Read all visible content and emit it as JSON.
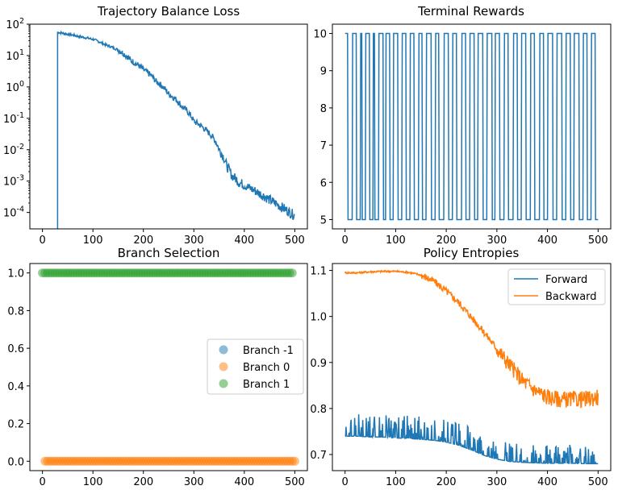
{
  "chart_data": [
    {
      "type": "line",
      "title": "Trajectory Balance Loss",
      "xlabel": "",
      "ylabel": "",
      "yscale": "log",
      "xlim": [
        -25,
        525
      ],
      "ylim": [
        3e-05,
        100
      ],
      "xticks": [
        0,
        100,
        200,
        300,
        400,
        500
      ],
      "xtick_labels": [
        "0",
        "100",
        "200",
        "300",
        "400",
        "500"
      ],
      "ytick_labels": [
        {
          "mantissa": "10",
          "exp": "-4",
          "value": 0.0001
        },
        {
          "mantissa": "10",
          "exp": "-3",
          "value": 0.001
        },
        {
          "mantissa": "10",
          "exp": "-2",
          "value": 0.01
        },
        {
          "mantissa": "10",
          "exp": "-1",
          "value": 0.1
        },
        {
          "mantissa": "10",
          "exp": "0",
          "value": 1
        },
        {
          "mantissa": "10",
          "exp": "1",
          "value": 10
        },
        {
          "mantissa": "10",
          "exp": "2",
          "value": 100
        }
      ],
      "color": "#1f77b4",
      "series": [
        {
          "x": [
            30,
            30,
            31,
            50,
            75,
            100,
            125,
            150,
            175,
            200,
            225,
            250,
            275,
            300,
            325,
            350,
            365,
            375,
            390,
            410,
            430,
            450,
            470,
            490,
            500
          ],
          "y": [
            3e-05,
            55,
            55,
            48,
            40,
            33,
            22,
            15,
            7,
            3.5,
            1.5,
            0.6,
            0.25,
            0.08,
            0.04,
            0.01,
            0.003,
            0.0015,
            0.0009,
            0.0006,
            0.0004,
            0.00025,
            0.00016,
            0.0001,
            8e-05
          ]
        }
      ]
    },
    {
      "type": "line",
      "title": "Terminal Rewards",
      "xlabel": "",
      "ylabel": "",
      "xlim": [
        -25,
        525
      ],
      "ylim": [
        4.75,
        10.25
      ],
      "xticks": [
        0,
        100,
        200,
        300,
        400,
        500
      ],
      "xtick_labels": [
        "0",
        "100",
        "200",
        "300",
        "400",
        "500"
      ],
      "yticks": [
        5,
        6,
        7,
        8,
        9,
        10
      ],
      "ytick_labels": [
        "5",
        "6",
        "7",
        "8",
        "9",
        "10"
      ],
      "color": "#1f77b4",
      "value_set": [
        5,
        10
      ],
      "series": [
        {
          "x": [
            0,
            5,
            6,
            14,
            15,
            22,
            23,
            30,
            31,
            33,
            34,
            40,
            41,
            48,
            49,
            55,
            56,
            58,
            59,
            66,
            67,
            75,
            76,
            80,
            81,
            88,
            89,
            95,
            96,
            104,
            105,
            112,
            113,
            120,
            121,
            128,
            129,
            136,
            137,
            145,
            146,
            152,
            153,
            160,
            161,
            170,
            171,
            178,
            179,
            185,
            186,
            195,
            196,
            204,
            205,
            212,
            213,
            220,
            221,
            230,
            231,
            238,
            239,
            246,
            247,
            255,
            256,
            262,
            263,
            272,
            273,
            280,
            281,
            290,
            291,
            296,
            297,
            305,
            306,
            314,
            315,
            322,
            323,
            332,
            333,
            340,
            341,
            348,
            349,
            357,
            358,
            366,
            367,
            374,
            375,
            384,
            385,
            392,
            393,
            400,
            401,
            410,
            411,
            418,
            419,
            428,
            429,
            436,
            437,
            445,
            446,
            452,
            453,
            462,
            463,
            470,
            471,
            478,
            479,
            486,
            487,
            494,
            495,
            500
          ],
          "y": [
            10,
            10,
            5,
            5,
            10,
            10,
            5,
            5,
            10,
            10,
            5,
            5,
            10,
            10,
            5,
            5,
            10,
            10,
            5,
            5,
            10,
            10,
            5,
            5,
            10,
            10,
            5,
            5,
            10,
            10,
            5,
            5,
            10,
            10,
            5,
            5,
            10,
            10,
            5,
            5,
            10,
            10,
            5,
            5,
            10,
            10,
            5,
            5,
            10,
            10,
            5,
            5,
            10,
            10,
            5,
            5,
            10,
            10,
            5,
            5,
            10,
            10,
            5,
            5,
            10,
            10,
            5,
            5,
            10,
            10,
            5,
            5,
            10,
            10,
            5,
            5,
            10,
            10,
            5,
            5,
            10,
            10,
            5,
            5,
            10,
            10,
            5,
            5,
            10,
            10,
            5,
            5,
            10,
            10,
            5,
            5,
            10,
            10,
            5,
            5,
            10,
            10,
            5,
            5,
            10,
            10,
            5,
            5,
            10,
            10,
            5,
            5,
            10,
            10,
            5,
            5,
            10,
            10,
            5,
            5,
            10,
            10,
            5,
            5
          ]
        }
      ]
    },
    {
      "type": "scatter",
      "title": "Branch Selection",
      "xlabel": "",
      "ylabel": "",
      "xlim": [
        -25,
        525
      ],
      "ylim": [
        -0.05,
        1.05
      ],
      "xticks": [
        0,
        100,
        200,
        300,
        400,
        500
      ],
      "xtick_labels": [
        "0",
        "100",
        "200",
        "300",
        "400",
        "500"
      ],
      "yticks": [
        0.0,
        0.2,
        0.4,
        0.6,
        0.8,
        1.0
      ],
      "ytick_labels": [
        "0.0",
        "0.2",
        "0.4",
        "0.6",
        "0.8",
        "1.0"
      ],
      "legend_position": "right",
      "series": [
        {
          "name": "Branch -1",
          "color": "#1f77b4",
          "x": [],
          "y_value": -1
        },
        {
          "name": "Branch 0",
          "color": "#ff7f0e",
          "x_range": [
            5,
            500
          ],
          "x_step": 5,
          "y_value": 0.0
        },
        {
          "name": "Branch 1",
          "color": "#2ca02c",
          "x_range": [
            0,
            495
          ],
          "x_step": 5,
          "y_value": 1.0
        }
      ]
    },
    {
      "type": "line",
      "title": "Policy Entropies",
      "xlabel": "",
      "ylabel": "",
      "xlim": [
        -25,
        525
      ],
      "ylim": [
        0.665,
        1.115
      ],
      "xticks": [
        0,
        100,
        200,
        300,
        400,
        500
      ],
      "xtick_labels": [
        "0",
        "100",
        "200",
        "300",
        "400",
        "500"
      ],
      "yticks": [
        0.7,
        0.8,
        0.9,
        1.0,
        1.1
      ],
      "ytick_labels": [
        "0.7",
        "0.8",
        "0.9",
        "1.0",
        "1.1"
      ],
      "legend_position": "top-right",
      "series": [
        {
          "name": "Forward",
          "color": "#1f77b4",
          "x": [
            0,
            25,
            50,
            75,
            100,
            125,
            150,
            175,
            200,
            225,
            250,
            275,
            300,
            325,
            350,
            375,
            400,
            425,
            450,
            475,
            500
          ],
          "y": [
            0.74,
            0.74,
            0.738,
            0.738,
            0.736,
            0.735,
            0.733,
            0.731,
            0.727,
            0.72,
            0.71,
            0.698,
            0.69,
            0.685,
            0.683,
            0.682,
            0.681,
            0.681,
            0.681,
            0.68,
            0.68
          ]
        },
        {
          "name": "Backward",
          "color": "#ff7f0e",
          "x": [
            0,
            25,
            50,
            75,
            100,
            125,
            150,
            175,
            200,
            225,
            250,
            275,
            300,
            325,
            350,
            375,
            400,
            425,
            450,
            475,
            500
          ],
          "y": [
            1.095,
            1.095,
            1.097,
            1.098,
            1.098,
            1.096,
            1.09,
            1.077,
            1.055,
            1.03,
            0.998,
            0.965,
            0.93,
            0.895,
            0.862,
            0.84,
            0.825,
            0.82,
            0.82,
            0.82,
            0.825
          ]
        }
      ]
    }
  ]
}
